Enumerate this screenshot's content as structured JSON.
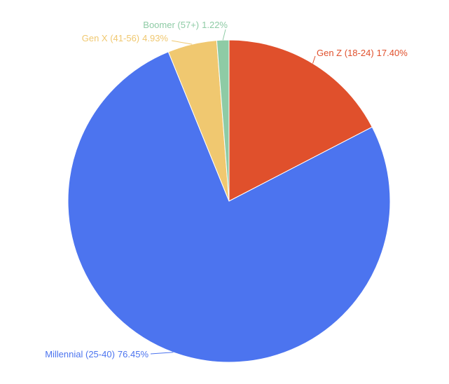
{
  "chart_data": {
    "type": "pie",
    "categories": [
      "Gen Z (18-24)",
      "Millennial (25-40)",
      "Gen X (41-56)",
      "Boomer (57+)"
    ],
    "values": [
      17.4,
      76.45,
      4.93,
      1.22
    ],
    "value_labels": [
      "17.40%",
      "76.45%",
      "4.93%",
      "1.22%"
    ],
    "colors": [
      "#e0502c",
      "#4c74ef",
      "#f0c870",
      "#8ecba5"
    ]
  }
}
